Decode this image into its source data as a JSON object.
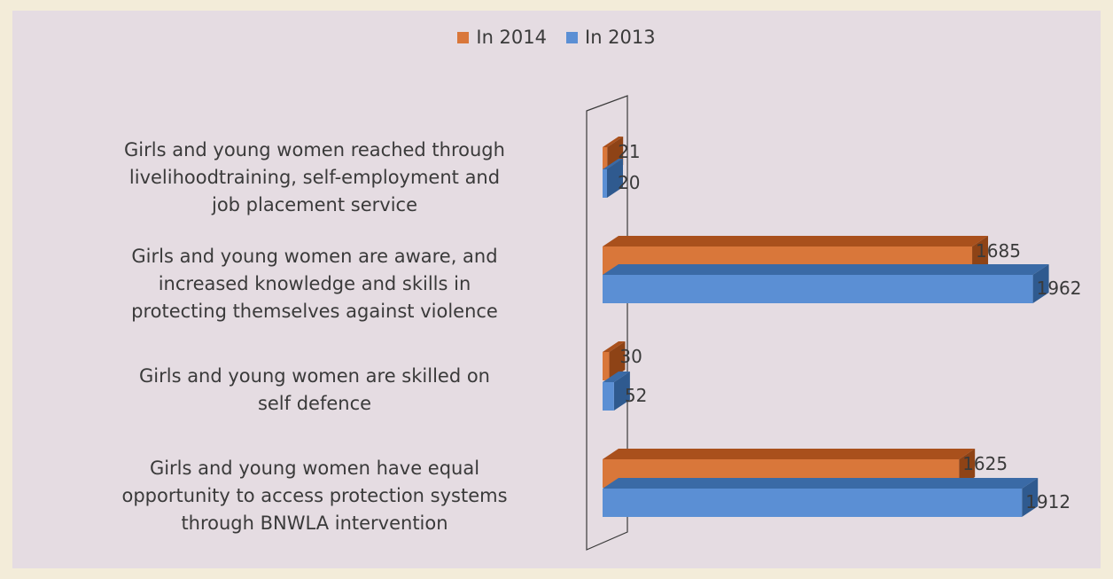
{
  "chart_data": {
    "type": "bar",
    "orientation": "horizontal",
    "categories": [
      "Girls and young women reached through livelihoodtraining, self-employment and job placement service",
      "Girls and young women are aware, and increased knowledge and skills in protecting themselves against violence",
      "Girls and young women are skilled on self defence",
      "Girls and young women have equal opportunity to access protection systems through BNWLA intervention"
    ],
    "category_lines": [
      [
        "Girls and young women reached through",
        "livelihoodtraining, self-employment and",
        "job placement service"
      ],
      [
        "Girls and young women are aware, and",
        "increased knowledge and skills in",
        "protecting themselves against violence"
      ],
      [
        "Girls and young women are skilled on",
        "self defence"
      ],
      [
        "Girls and young women have equal",
        "opportunity to access protection systems",
        "through BNWLA intervention"
      ]
    ],
    "series": [
      {
        "name": "In 2014",
        "values": [
          21,
          1685,
          30,
          1625
        ],
        "color": "#d9773a"
      },
      {
        "name": "In 2013",
        "values": [
          20,
          1962,
          52,
          1912
        ],
        "color": "#5b8fd4"
      }
    ],
    "value_labels": [
      [
        "21",
        "1685",
        "30",
        "1625"
      ],
      [
        "20",
        "1962",
        "52",
        "1912"
      ]
    ],
    "legend_position": "top-center",
    "grid": false,
    "style": "3d"
  }
}
